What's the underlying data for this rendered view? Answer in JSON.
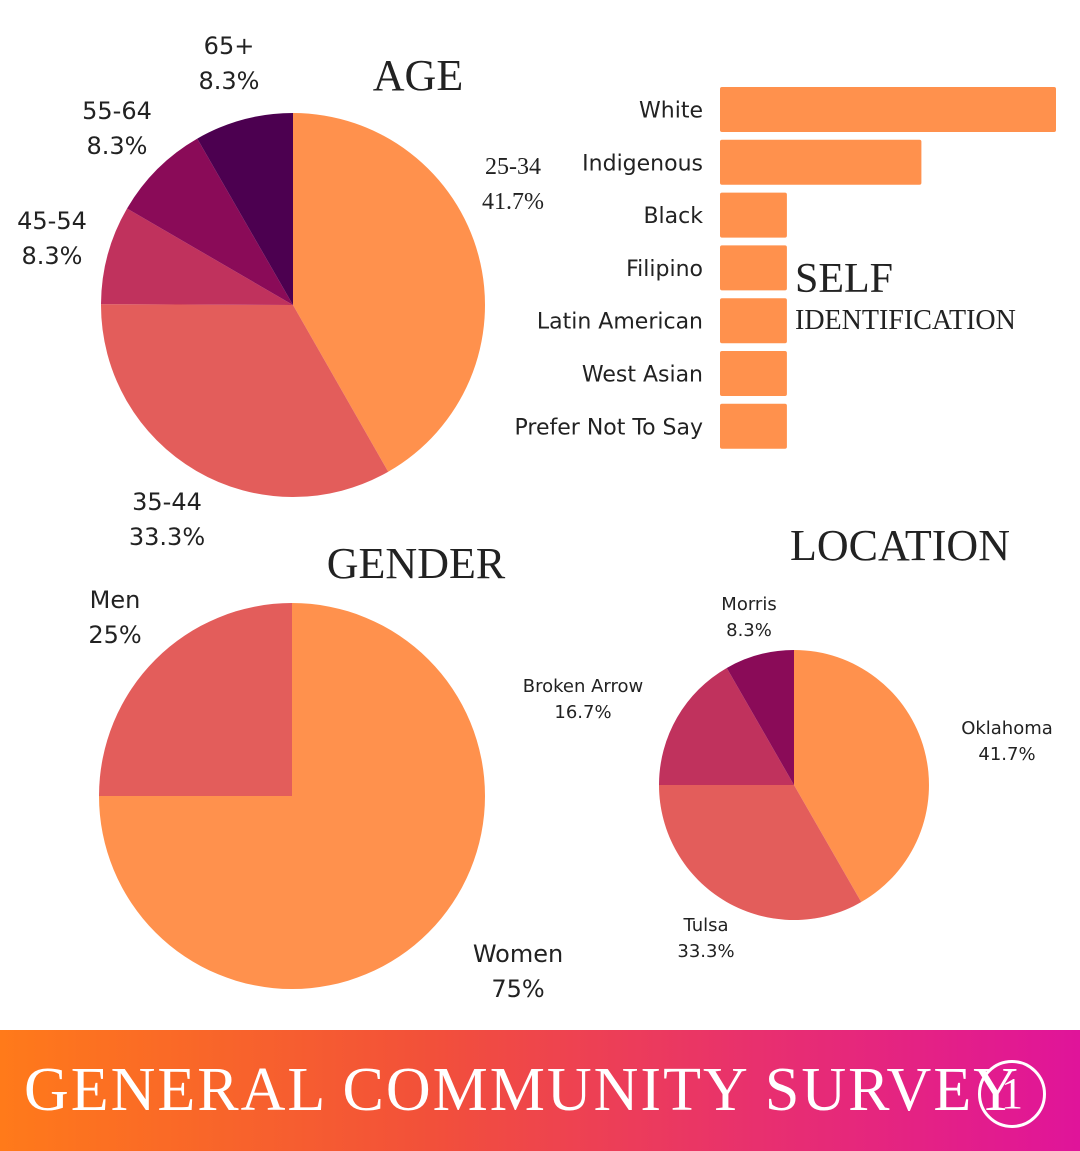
{
  "colors": {
    "c1": "#ff914d",
    "c2": "#e35d5b",
    "c3": "#c0325d",
    "c4": "#8a0b58",
    "c5": "#4c0050",
    "bar": "#ff914d",
    "text": "#222222"
  },
  "chart_data": [
    {
      "type": "pie",
      "title": "AGE",
      "categories": [
        "25-34",
        "35-44",
        "45-54",
        "55-64",
        "65+"
      ],
      "values": [
        41.7,
        33.3,
        8.3,
        8.3,
        8.3
      ],
      "value_labels": [
        "41.7%",
        "33.3%",
        "8.3%",
        "8.3%",
        "8.3%"
      ]
    },
    {
      "type": "bar",
      "orientation": "horizontal",
      "title": "SELF",
      "subtitle": "IDENTIFICATION",
      "categories": [
        "White",
        "Indigenous",
        "Black",
        "Filipino",
        "Latin American",
        "West Asian",
        "Prefer Not To Say"
      ],
      "values": [
        41.7,
        25,
        8.3,
        8.3,
        8.3,
        8.3,
        8.3
      ],
      "grid": false,
      "xlabel": "",
      "ylabel": ""
    },
    {
      "type": "pie",
      "title": "GENDER",
      "categories": [
        "Women",
        "Men"
      ],
      "values": [
        75,
        25
      ],
      "value_labels": [
        "75%",
        "25%"
      ]
    },
    {
      "type": "pie",
      "title": "LOCATION",
      "categories": [
        "Oklahoma",
        "Tulsa",
        "Broken Arrow",
        "Morris"
      ],
      "values": [
        41.7,
        33.3,
        16.7,
        8.3
      ],
      "value_labels": [
        "41.7%",
        "33.3%",
        "16.7%",
        "8.3%"
      ]
    }
  ],
  "banner": {
    "title": "GENERAL COMMUNITY SURVEY",
    "page_number": "1"
  }
}
